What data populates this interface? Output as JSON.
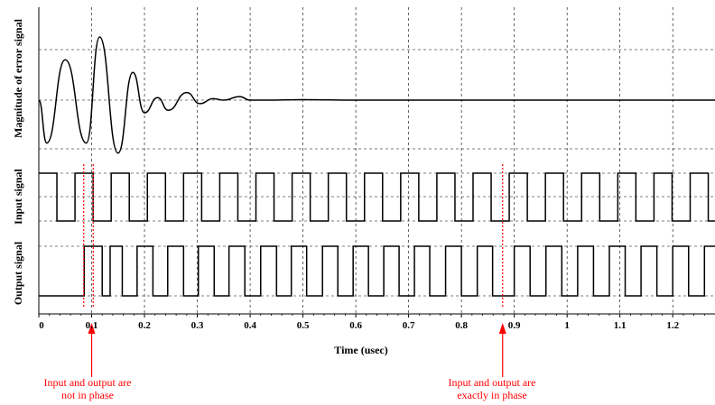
{
  "chart_data": {
    "type": "line",
    "title": "",
    "xlabel": "Time (usec)",
    "xlim": [
      0,
      1.28
    ],
    "x_ticks": [
      0,
      0.1,
      0.2,
      0.3,
      0.4,
      0.5,
      0.6,
      0.7,
      0.8,
      0.9,
      1,
      1.1,
      1.2
    ],
    "x_tick_labels": [
      "0",
      "0.1",
      "0.2",
      "0.3",
      "0.4",
      "0.5",
      "0.6",
      "0.7",
      "0.8",
      "0.9",
      "1",
      "1.1",
      "1.2"
    ],
    "grid": true,
    "panels": [
      {
        "ylabel": "Magnitude of error signal",
        "series": [
          {
            "x": [
              0,
              0.015,
              0.05,
              0.09,
              0.115,
              0.15,
              0.178,
              0.2,
              0.225,
              0.245,
              0.28,
              0.305,
              0.33,
              0.35,
              0.38,
              0.4,
              0.43,
              0.5,
              0.6,
              1.28
            ],
            "y": [
              0,
              -0.85,
              0.8,
              -0.85,
              1.25,
              -1.05,
              0.55,
              -0.25,
              0.05,
              -0.2,
              0.15,
              -0.07,
              0.03,
              0,
              0.07,
              0,
              0,
              0.01,
              0,
              0
            ]
          }
        ]
      },
      {
        "ylabel": "Input signal",
        "series": [
          {
            "type": "square",
            "period": 0.0685,
            "phase_start": 0.0,
            "start_level": 1,
            "y": [
              0,
              1
            ]
          }
        ]
      },
      {
        "ylabel": "Output signal",
        "series": [
          {
            "transitions_x": [
              0.0,
              0.086,
              0.12,
              0.135,
              0.158,
              0.186,
              0.216,
              0.244,
              0.274,
              0.302,
              0.332,
              0.36,
              0.39,
              0.42,
              0.45,
              0.478,
              0.507,
              0.537,
              0.566,
              0.595,
              0.624,
              0.653,
              0.682,
              0.711,
              0.74,
              0.77,
              0.8,
              0.83,
              0.859,
              0.9,
              0.93,
              0.96,
              0.99,
              1.02,
              1.05,
              1.08,
              1.11,
              1.14,
              1.17,
              1.2,
              1.23,
              1.26,
              1.28
            ],
            "start_level": 0,
            "y": [
              0,
              1
            ]
          }
        ]
      }
    ],
    "annotations": [
      {
        "line1": "Input and output are",
        "line2": "not in phase",
        "x": 0.1,
        "color": "#ff0000"
      },
      {
        "line1": "Input and output are",
        "line2": "exactly in phase",
        "x": 0.878,
        "color": "#ff0000"
      }
    ],
    "phase_markers": [
      0.085,
      0.103,
      0.878
    ],
    "colors": {
      "trace": "#000000",
      "annotation": "#ff0000"
    }
  }
}
